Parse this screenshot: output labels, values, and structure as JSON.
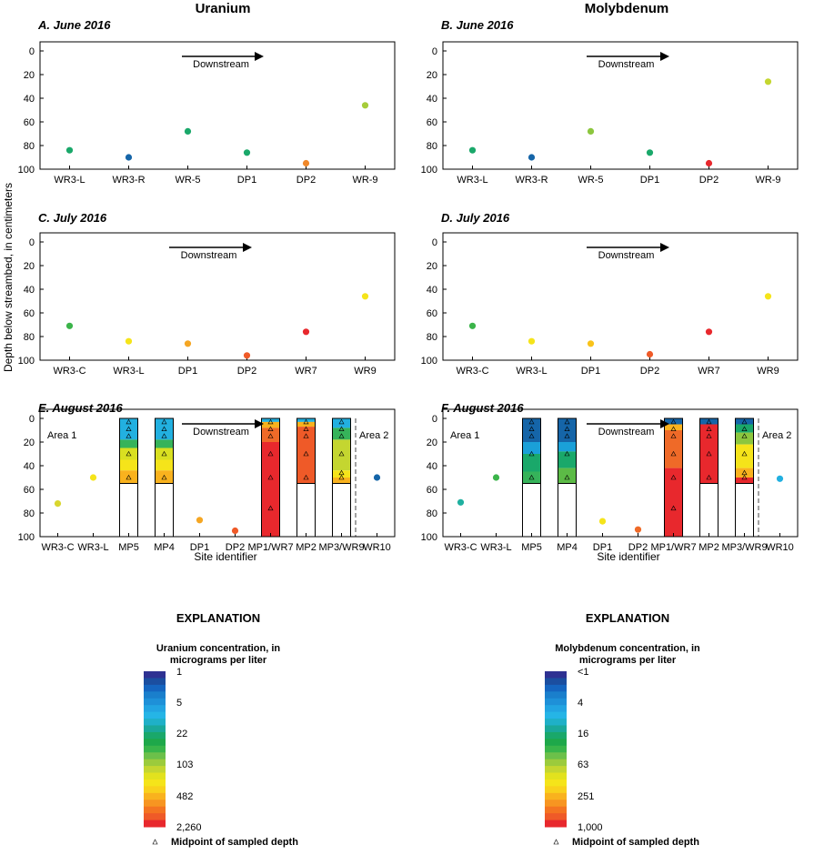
{
  "headers": {
    "uranium": "Uranium",
    "molybdenum": "Molybdenum"
  },
  "y_axis_label": "Depth below streambed, in centimeters",
  "x_axis_label": "Site identifier",
  "downstream_label": "Downstream",
  "chart_data": [
    {
      "id": "A",
      "type": "scatter",
      "element": "uranium",
      "title": "A. June 2016",
      "ylim": [
        100,
        0
      ],
      "yticks": [
        0,
        20,
        40,
        60,
        80,
        100
      ],
      "categories": [
        "WR3-L",
        "WR3-R",
        "WR-5",
        "DP1",
        "DP2",
        "WR-9"
      ],
      "points": [
        {
          "site": "WR3-L",
          "depth": 84,
          "color": "#1aa86a"
        },
        {
          "site": "WR3-R",
          "depth": 90,
          "color": "#1565a8"
        },
        {
          "site": "WR-5",
          "depth": 68,
          "color": "#1aa86a"
        },
        {
          "site": "DP1",
          "depth": 86,
          "color": "#1aa86a"
        },
        {
          "site": "DP2",
          "depth": 95,
          "color": "#f0882a"
        },
        {
          "site": "WR-9",
          "depth": 46,
          "color": "#a6cc3a"
        }
      ]
    },
    {
      "id": "B",
      "type": "scatter",
      "element": "molybdenum",
      "title": "B. June 2016",
      "ylim": [
        100,
        0
      ],
      "yticks": [
        0,
        20,
        40,
        60,
        80,
        100
      ],
      "categories": [
        "WR3-L",
        "WR3-R",
        "WR-5",
        "DP1",
        "DP2",
        "WR-9"
      ],
      "points": [
        {
          "site": "WR3-L",
          "depth": 84,
          "color": "#1aa86a"
        },
        {
          "site": "WR3-R",
          "depth": 90,
          "color": "#1565a8"
        },
        {
          "site": "WR-5",
          "depth": 68,
          "color": "#8cc63e"
        },
        {
          "site": "DP1",
          "depth": 86,
          "color": "#1aa86a"
        },
        {
          "site": "DP2",
          "depth": 95,
          "color": "#e8282d"
        },
        {
          "site": "WR-9",
          "depth": 26,
          "color": "#c4d630"
        }
      ]
    },
    {
      "id": "C",
      "type": "scatter",
      "element": "uranium",
      "title": "C. July 2016",
      "ylim": [
        100,
        0
      ],
      "yticks": [
        0,
        20,
        40,
        60,
        80,
        100
      ],
      "categories": [
        "WR3-C",
        "WR3-L",
        "DP1",
        "DP2",
        "WR7",
        "WR9"
      ],
      "points": [
        {
          "site": "WR3-C",
          "depth": 71,
          "color": "#3bb44a"
        },
        {
          "site": "WR3-L",
          "depth": 84,
          "color": "#f5e41a"
        },
        {
          "site": "DP1",
          "depth": 86,
          "color": "#f5a623"
        },
        {
          "site": "DP2",
          "depth": 96,
          "color": "#ef5a28"
        },
        {
          "site": "WR7",
          "depth": 76,
          "color": "#e8282d"
        },
        {
          "site": "WR9",
          "depth": 46,
          "color": "#f5e41a"
        }
      ]
    },
    {
      "id": "D",
      "type": "scatter",
      "element": "molybdenum",
      "title": "D. July 2016",
      "ylim": [
        100,
        0
      ],
      "yticks": [
        0,
        20,
        40,
        60,
        80,
        100
      ],
      "categories": [
        "WR3-C",
        "WR3-L",
        "DP1",
        "DP2",
        "WR7",
        "WR9"
      ],
      "points": [
        {
          "site": "WR3-C",
          "depth": 71,
          "color": "#3bb44a"
        },
        {
          "site": "WR3-L",
          "depth": 84,
          "color": "#f5e41a"
        },
        {
          "site": "DP1",
          "depth": 86,
          "color": "#f9c31a"
        },
        {
          "site": "DP2",
          "depth": 95,
          "color": "#ef5a28"
        },
        {
          "site": "WR7",
          "depth": 76,
          "color": "#e8282d"
        },
        {
          "site": "WR9",
          "depth": 46,
          "color": "#f5e41a"
        }
      ]
    },
    {
      "id": "E",
      "type": "scatter",
      "element": "uranium",
      "title": "E. August 2016",
      "ylim": [
        100,
        0
      ],
      "yticks": [
        0,
        20,
        40,
        60,
        80,
        100
      ],
      "categories": [
        "WR3-C",
        "WR3-L",
        "MP5",
        "MP4",
        "DP1",
        "DP2",
        "MP1/WR7",
        "MP2",
        "MP3/WR9",
        "WR10"
      ],
      "area_labels": [
        "Area 1",
        "Area 2"
      ],
      "points": [
        {
          "site": "WR3-C",
          "depth": 72,
          "color": "#d9d62e"
        },
        {
          "site": "WR3-L",
          "depth": 50,
          "color": "#f5e41a"
        },
        {
          "site": "DP1",
          "depth": 86,
          "color": "#f5a623"
        },
        {
          "site": "DP2",
          "depth": 95,
          "color": "#ef5a28"
        },
        {
          "site": "WR10",
          "depth": 50,
          "color": "#1565a8"
        }
      ],
      "profiles": [
        {
          "site": "MP5",
          "bottom": 55,
          "midpoints": [
            3,
            9,
            15,
            30,
            50
          ],
          "bands": [
            {
              "to": 18,
              "color": "#22b0e0"
            },
            {
              "to": 25,
              "color": "#36b35a"
            },
            {
              "to": 35,
              "color": "#d9e021"
            },
            {
              "to": 44,
              "color": "#f5e41a"
            },
            {
              "to": 55,
              "color": "#f9b21e"
            }
          ]
        },
        {
          "site": "MP4",
          "bottom": 55,
          "midpoints": [
            3,
            9,
            15,
            30,
            50
          ],
          "bands": [
            {
              "to": 18,
              "color": "#22b0e0"
            },
            {
              "to": 25,
              "color": "#36b35a"
            },
            {
              "to": 35,
              "color": "#d9e021"
            },
            {
              "to": 44,
              "color": "#f5e41a"
            },
            {
              "to": 55,
              "color": "#f9b21e"
            }
          ]
        },
        {
          "site": "MP1/WR7",
          "bottom": 100,
          "midpoints": [
            3,
            9,
            15,
            30,
            50,
            76
          ],
          "bands": [
            {
              "to": 3,
              "color": "#22b0e0"
            },
            {
              "to": 8,
              "color": "#f9b21e"
            },
            {
              "to": 20,
              "color": "#ef6a28"
            },
            {
              "to": 100,
              "color": "#e8282d"
            }
          ]
        },
        {
          "site": "MP2",
          "bottom": 55,
          "midpoints": [
            3,
            9,
            15,
            30,
            50
          ],
          "bands": [
            {
              "to": 3,
              "color": "#22b0e0"
            },
            {
              "to": 7,
              "color": "#f9b21e"
            },
            {
              "to": 55,
              "color": "#ef5a28"
            }
          ]
        },
        {
          "site": "MP3/WR9",
          "bottom": 55,
          "midpoints": [
            3,
            9,
            15,
            30,
            46,
            50
          ],
          "bands": [
            {
              "to": 8,
              "color": "#22b0e0"
            },
            {
              "to": 18,
              "color": "#36b35a"
            },
            {
              "to": 44,
              "color": "#c4d630"
            },
            {
              "to": 50,
              "color": "#f5e41a"
            },
            {
              "to": 55,
              "color": "#f9b21e"
            }
          ]
        }
      ]
    },
    {
      "id": "F",
      "type": "scatter",
      "element": "molybdenum",
      "title": "F. August 2016",
      "ylim": [
        100,
        0
      ],
      "yticks": [
        0,
        20,
        40,
        60,
        80,
        100
      ],
      "categories": [
        "WR3-C",
        "WR3-L",
        "MP5",
        "MP4",
        "DP1",
        "DP2",
        "MP1/WR7",
        "MP2",
        "MP3/WR9",
        "WR10"
      ],
      "area_labels": [
        "Area 1",
        "Area 2"
      ],
      "points": [
        {
          "site": "WR3-C",
          "depth": 71,
          "color": "#1fb0a0"
        },
        {
          "site": "WR3-L",
          "depth": 50,
          "color": "#3bb44a"
        },
        {
          "site": "DP1",
          "depth": 87,
          "color": "#f5e41a"
        },
        {
          "site": "DP2",
          "depth": 94,
          "color": "#ef6a28"
        },
        {
          "site": "WR10",
          "depth": 51,
          "color": "#22b0e0"
        }
      ],
      "profiles": [
        {
          "site": "MP5",
          "bottom": 55,
          "midpoints": [
            3,
            9,
            15,
            30,
            50
          ],
          "bands": [
            {
              "to": 20,
              "color": "#1565a8"
            },
            {
              "to": 30,
              "color": "#1aa0d8"
            },
            {
              "to": 45,
              "color": "#1aa86a"
            },
            {
              "to": 55,
              "color": "#36b35a"
            }
          ]
        },
        {
          "site": "MP4",
          "bottom": 55,
          "midpoints": [
            3,
            9,
            15,
            30,
            50
          ],
          "bands": [
            {
              "to": 20,
              "color": "#1565a8"
            },
            {
              "to": 28,
              "color": "#1aa0d8"
            },
            {
              "to": 42,
              "color": "#1aa86a"
            },
            {
              "to": 55,
              "color": "#5cbb46"
            }
          ]
        },
        {
          "site": "MP1/WR7",
          "bottom": 100,
          "midpoints": [
            3,
            9,
            15,
            30,
            50,
            76
          ],
          "bands": [
            {
              "to": 5,
              "color": "#1565a8"
            },
            {
              "to": 10,
              "color": "#f9b21e"
            },
            {
              "to": 42,
              "color": "#ef6a28"
            },
            {
              "to": 100,
              "color": "#e8282d"
            }
          ]
        },
        {
          "site": "MP2",
          "bottom": 55,
          "midpoints": [
            3,
            9,
            15,
            30,
            50
          ],
          "bands": [
            {
              "to": 5,
              "color": "#1565a8"
            },
            {
              "to": 55,
              "color": "#e8282d"
            }
          ]
        },
        {
          "site": "MP3/WR9",
          "bottom": 55,
          "midpoints": [
            3,
            9,
            15,
            30,
            46,
            50
          ],
          "bands": [
            {
              "to": 5,
              "color": "#1565a8"
            },
            {
              "to": 12,
              "color": "#1aa86a"
            },
            {
              "to": 22,
              "color": "#8cc63e"
            },
            {
              "to": 42,
              "color": "#f5e41a"
            },
            {
              "to": 50,
              "color": "#f9b21e"
            },
            {
              "to": 55,
              "color": "#e8282d"
            }
          ]
        }
      ]
    }
  ],
  "explanations": [
    {
      "element": "uranium",
      "title": "EXPLANATION",
      "subtitle": [
        "Uranium concentration, in",
        "micrograms per liter"
      ],
      "tick_labels": [
        "1",
        "5",
        "22",
        "103",
        "482",
        "2,260"
      ],
      "midpoint_label": "Midpoint of sampled depth",
      "scale_colors": [
        "#2e3192",
        "#1b4ea0",
        "#1565c0",
        "#1a7fcc",
        "#1e90d8",
        "#22a4e2",
        "#25b5e6",
        "#1fb0c8",
        "#1aa89a",
        "#1aa86a",
        "#1ea84a",
        "#39b54a",
        "#6cc04a",
        "#9bcb3c",
        "#c4d630",
        "#e2e21e",
        "#f5e41a",
        "#f9d11c",
        "#f9b21e",
        "#f79521",
        "#f47421",
        "#ef5a28",
        "#e8282d"
      ]
    },
    {
      "element": "molybdenum",
      "title": "EXPLANATION",
      "subtitle": [
        "Molybdenum concentration, in",
        "micrograms per liter"
      ],
      "tick_labels": [
        "<1",
        "4",
        "16",
        "63",
        "251",
        "1,000"
      ],
      "midpoint_label": "Midpoint of sampled depth",
      "scale_colors": [
        "#2e3192",
        "#1b4ea0",
        "#1565c0",
        "#1a7fcc",
        "#1e90d8",
        "#22a4e2",
        "#25b5e6",
        "#1fb0c8",
        "#1aa89a",
        "#1aa86a",
        "#1ea84a",
        "#39b54a",
        "#6cc04a",
        "#9bcb3c",
        "#c4d630",
        "#e2e21e",
        "#f5e41a",
        "#f9d11c",
        "#f9b21e",
        "#f79521",
        "#f47421",
        "#ef5a28",
        "#e8282d"
      ]
    }
  ]
}
